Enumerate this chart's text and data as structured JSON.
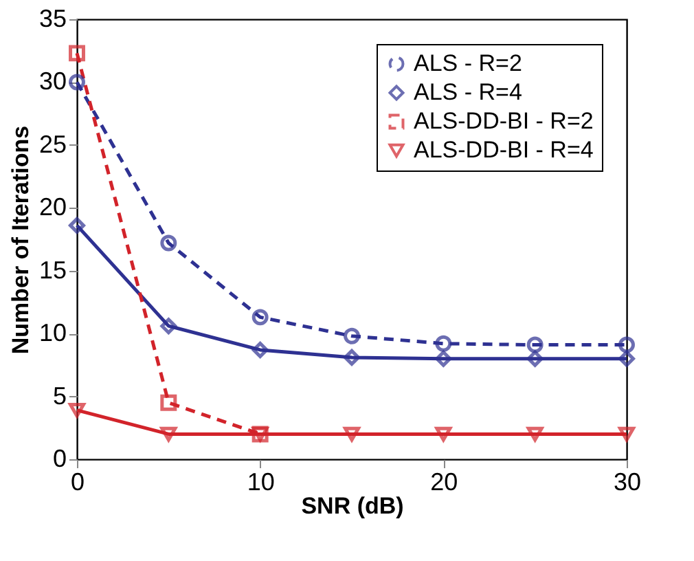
{
  "chart_data": {
    "type": "line",
    "xlabel": "SNR (dB)",
    "ylabel": "Number of Iterations",
    "x": [
      0,
      5,
      10,
      15,
      20,
      25,
      30
    ],
    "series": [
      {
        "name": "ALS - R=2",
        "color": "#2e3192",
        "line_style": "dashed",
        "marker": "circle",
        "values": [
          30,
          17.2,
          11.3,
          9.8,
          9.2,
          9.1,
          9.1
        ]
      },
      {
        "name": "ALS - R=4",
        "color": "#2e3192",
        "line_style": "solid",
        "marker": "diamond",
        "values": [
          18.6,
          10.6,
          8.7,
          8.1,
          8.0,
          8.0,
          8.0
        ]
      },
      {
        "name": "ALS-DD-BI - R=2",
        "color": "#d2232a",
        "line_style": "dashed",
        "marker": "square",
        "values": [
          32.3,
          4.5,
          2,
          null,
          null,
          null,
          null
        ]
      },
      {
        "name": "ALS-DD-BI - R=4",
        "color": "#d2232a",
        "line_style": "solid",
        "marker": "triangle",
        "values": [
          3.9,
          2,
          2,
          2,
          2,
          2,
          2
        ]
      }
    ],
    "xlim": [
      0,
      30
    ],
    "xticks": [
      0,
      10,
      20,
      30
    ],
    "ylim": [
      0,
      35
    ],
    "yticks": [
      0,
      5,
      10,
      15,
      20,
      25,
      30,
      35
    ],
    "grid": false,
    "legend": "top right"
  }
}
